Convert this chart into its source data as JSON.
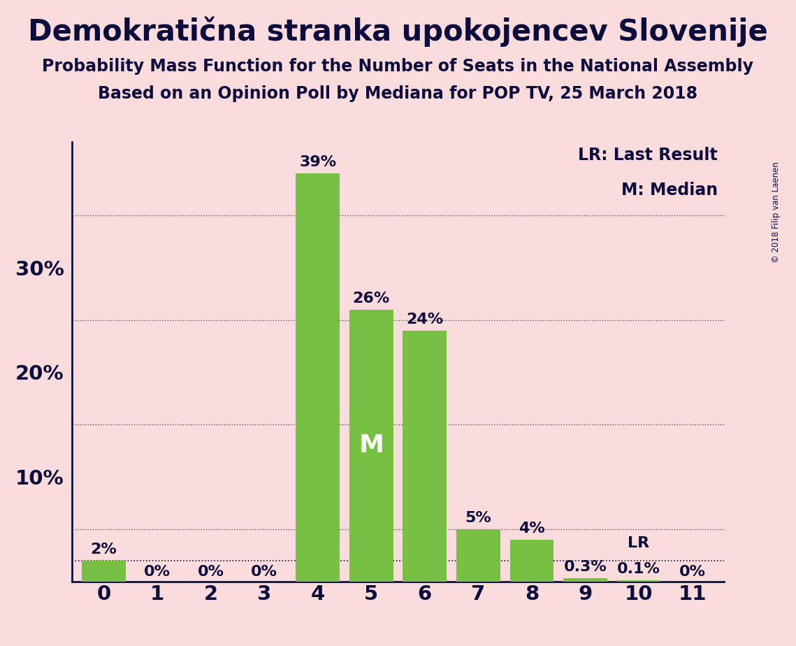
{
  "title": "Demokratična stranka upokojencev Slovenije",
  "subtitle1": "Probability Mass Function for the Number of Seats in the National Assembly",
  "subtitle2": "Based on an Opinion Poll by Mediana for POP TV, 25 March 2018",
  "copyright": "© 2018 Filip van Laenen",
  "categories": [
    0,
    1,
    2,
    3,
    4,
    5,
    6,
    7,
    8,
    9,
    10,
    11
  ],
  "values": [
    2,
    0,
    0,
    0,
    39,
    26,
    24,
    5,
    4,
    0.3,
    0.1,
    0
  ],
  "labels": [
    "2%",
    "0%",
    "0%",
    "0%",
    "39%",
    "26%",
    "24%",
    "5%",
    "4%",
    "0.3%",
    "0.1%",
    "0%"
  ],
  "bar_color": "#77C043",
  "background_color": "#FBDCDC",
  "text_color": "#0d0d3d",
  "median_bar_idx": 5,
  "median_label": "M",
  "lr_bar_idx": 10,
  "lr_label": "LR",
  "lr_line_value": 2,
  "ylim": [
    0,
    42
  ],
  "ytick_positions": [
    0,
    10,
    20,
    30
  ],
  "ytick_labels": [
    "",
    "10%",
    "20%",
    "30%"
  ],
  "dotted_lines": [
    5,
    15,
    25,
    35
  ],
  "legend_text1": "LR: Last Result",
  "legend_text2": "M: Median",
  "title_fontsize": 30,
  "subtitle_fontsize": 17,
  "label_fontsize": 16,
  "tick_fontsize": 21,
  "legend_fontsize": 17,
  "bar_width": 0.82
}
